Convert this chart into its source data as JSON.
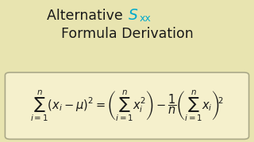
{
  "background_color": "#e8e4b0",
  "box_color": "#f5f0cc",
  "box_edge_color": "#aaa888",
  "title_line1": "Alternative ",
  "title_sxx_color": "#00aacc",
  "title_line2": "Formula Derivation",
  "title_color": "#1a1a1a",
  "formula": "$\\sum_{i=1}^{n}(x_i - \\mu)^2 = \\left(\\sum_{i=1}^{n} x_i^2\\right) - \\dfrac{1}{n}\\left(\\sum_{i=1}^{n} x_i\\right)^{\\!2}$",
  "formula_color": "#1a1a1a",
  "title_fontsize": 12.5,
  "formula_fontsize": 10.5
}
